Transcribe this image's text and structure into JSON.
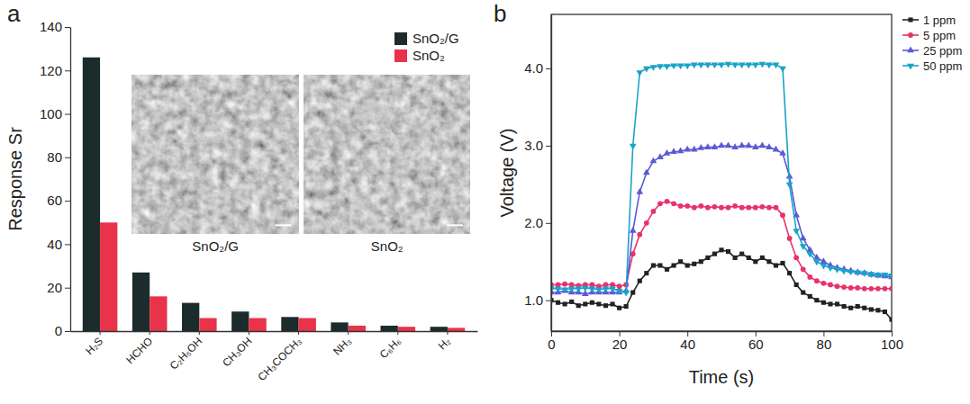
{
  "chart_data": [
    {
      "type": "bar",
      "title": "a",
      "y_label": "Response Sr",
      "categories": [
        "H₂S",
        "HCHO",
        "C₂H₅OH",
        "CH₃OH",
        "CH₃COCH₃",
        "NH₃",
        "C₆H₆",
        "H₂"
      ],
      "series": [
        {
          "name": "SnO₂/G",
          "color": "#1c2b2b",
          "values": [
            126,
            27,
            13,
            9,
            6.5,
            4,
            2.5,
            2
          ]
        },
        {
          "name": "SnO₂",
          "color": "#e8334a",
          "values": [
            50,
            16,
            6,
            6,
            6,
            2.5,
            2,
            1.5
          ]
        }
      ],
      "ylim": [
        0,
        140
      ],
      "yticks": [
        0,
        20,
        40,
        60,
        80,
        100,
        120,
        140
      ],
      "annotations": [
        "SnO₂/G",
        "SnO₂"
      ],
      "grid": false,
      "legend": "upper right"
    },
    {
      "type": "line",
      "title": "b",
      "x_label": "Time (s)",
      "y_label": "Voltage (V)",
      "x": [
        0,
        2,
        4,
        6,
        8,
        10,
        12,
        14,
        16,
        18,
        20,
        22,
        24,
        26,
        28,
        30,
        32,
        34,
        36,
        38,
        40,
        42,
        44,
        46,
        48,
        50,
        52,
        54,
        56,
        58,
        60,
        62,
        64,
        66,
        68,
        70,
        72,
        74,
        76,
        78,
        80,
        82,
        84,
        86,
        88,
        90,
        92,
        94,
        96,
        98,
        100
      ],
      "series": [
        {
          "name": "1 ppm",
          "color": "#222222",
          "marker": "square",
          "values": [
            1.0,
            0.97,
            0.95,
            0.98,
            0.93,
            0.95,
            0.97,
            0.95,
            0.93,
            0.95,
            0.9,
            0.92,
            1.1,
            1.25,
            1.35,
            1.45,
            1.45,
            1.4,
            1.45,
            1.5,
            1.45,
            1.47,
            1.5,
            1.55,
            1.6,
            1.65,
            1.63,
            1.55,
            1.6,
            1.55,
            1.5,
            1.55,
            1.5,
            1.45,
            1.48,
            1.35,
            1.2,
            1.1,
            1.05,
            1.0,
            0.97,
            0.95,
            0.95,
            0.92,
            0.9,
            0.92,
            0.9,
            0.88,
            0.87,
            0.85,
            0.75
          ]
        },
        {
          "name": "5 ppm",
          "color": "#e8336a",
          "marker": "circle",
          "values": [
            1.2,
            1.2,
            1.21,
            1.2,
            1.19,
            1.2,
            1.2,
            1.18,
            1.2,
            1.2,
            1.18,
            1.2,
            1.6,
            1.85,
            2.0,
            2.15,
            2.25,
            2.28,
            2.25,
            2.22,
            2.22,
            2.2,
            2.22,
            2.2,
            2.21,
            2.2,
            2.2,
            2.22,
            2.2,
            2.2,
            2.2,
            2.21,
            2.2,
            2.2,
            2.1,
            1.8,
            1.55,
            1.4,
            1.3,
            1.25,
            1.22,
            1.2,
            1.18,
            1.17,
            1.16,
            1.16,
            1.15,
            1.15,
            1.15,
            1.15,
            1.15
          ]
        },
        {
          "name": "25 ppm",
          "color": "#5a5ad6",
          "marker": "triangle-up",
          "values": [
            1.1,
            1.1,
            1.12,
            1.1,
            1.1,
            1.08,
            1.1,
            1.1,
            1.1,
            1.1,
            1.1,
            1.12,
            1.9,
            2.4,
            2.65,
            2.8,
            2.85,
            2.9,
            2.92,
            2.93,
            2.95,
            2.95,
            2.97,
            2.98,
            2.98,
            3.0,
            3.0,
            2.98,
            3.0,
            3.0,
            2.98,
            3.0,
            2.98,
            2.95,
            2.9,
            2.6,
            2.1,
            1.8,
            1.65,
            1.55,
            1.5,
            1.45,
            1.42,
            1.4,
            1.38,
            1.36,
            1.35,
            1.33,
            1.32,
            1.31,
            1.3
          ]
        },
        {
          "name": "50 ppm",
          "color": "#1aa3c8",
          "marker": "triangle-down",
          "values": [
            1.15,
            1.15,
            1.14,
            1.15,
            1.15,
            1.16,
            1.15,
            1.14,
            1.15,
            1.15,
            1.12,
            1.1,
            3.0,
            3.95,
            4.0,
            4.02,
            4.03,
            4.03,
            4.04,
            4.04,
            4.04,
            4.05,
            4.05,
            4.05,
            4.05,
            4.05,
            4.06,
            4.05,
            4.05,
            4.05,
            4.05,
            4.06,
            4.05,
            4.05,
            4.0,
            2.5,
            1.9,
            1.7,
            1.6,
            1.5,
            1.45,
            1.42,
            1.4,
            1.38,
            1.37,
            1.36,
            1.35,
            1.34,
            1.33,
            1.33,
            1.32
          ]
        }
      ],
      "xlim": [
        0,
        100
      ],
      "xticks": [
        0,
        20,
        40,
        60,
        80,
        100
      ],
      "ylim": [
        0.6,
        4.7
      ],
      "yticks": [
        {
          "value": 1,
          "label": "1.0"
        },
        {
          "value": 2,
          "label": "2.0"
        },
        {
          "value": 3,
          "label": "3.0"
        },
        {
          "value": 4,
          "label": "4.0"
        }
      ],
      "grid": false,
      "legend": "right"
    }
  ]
}
